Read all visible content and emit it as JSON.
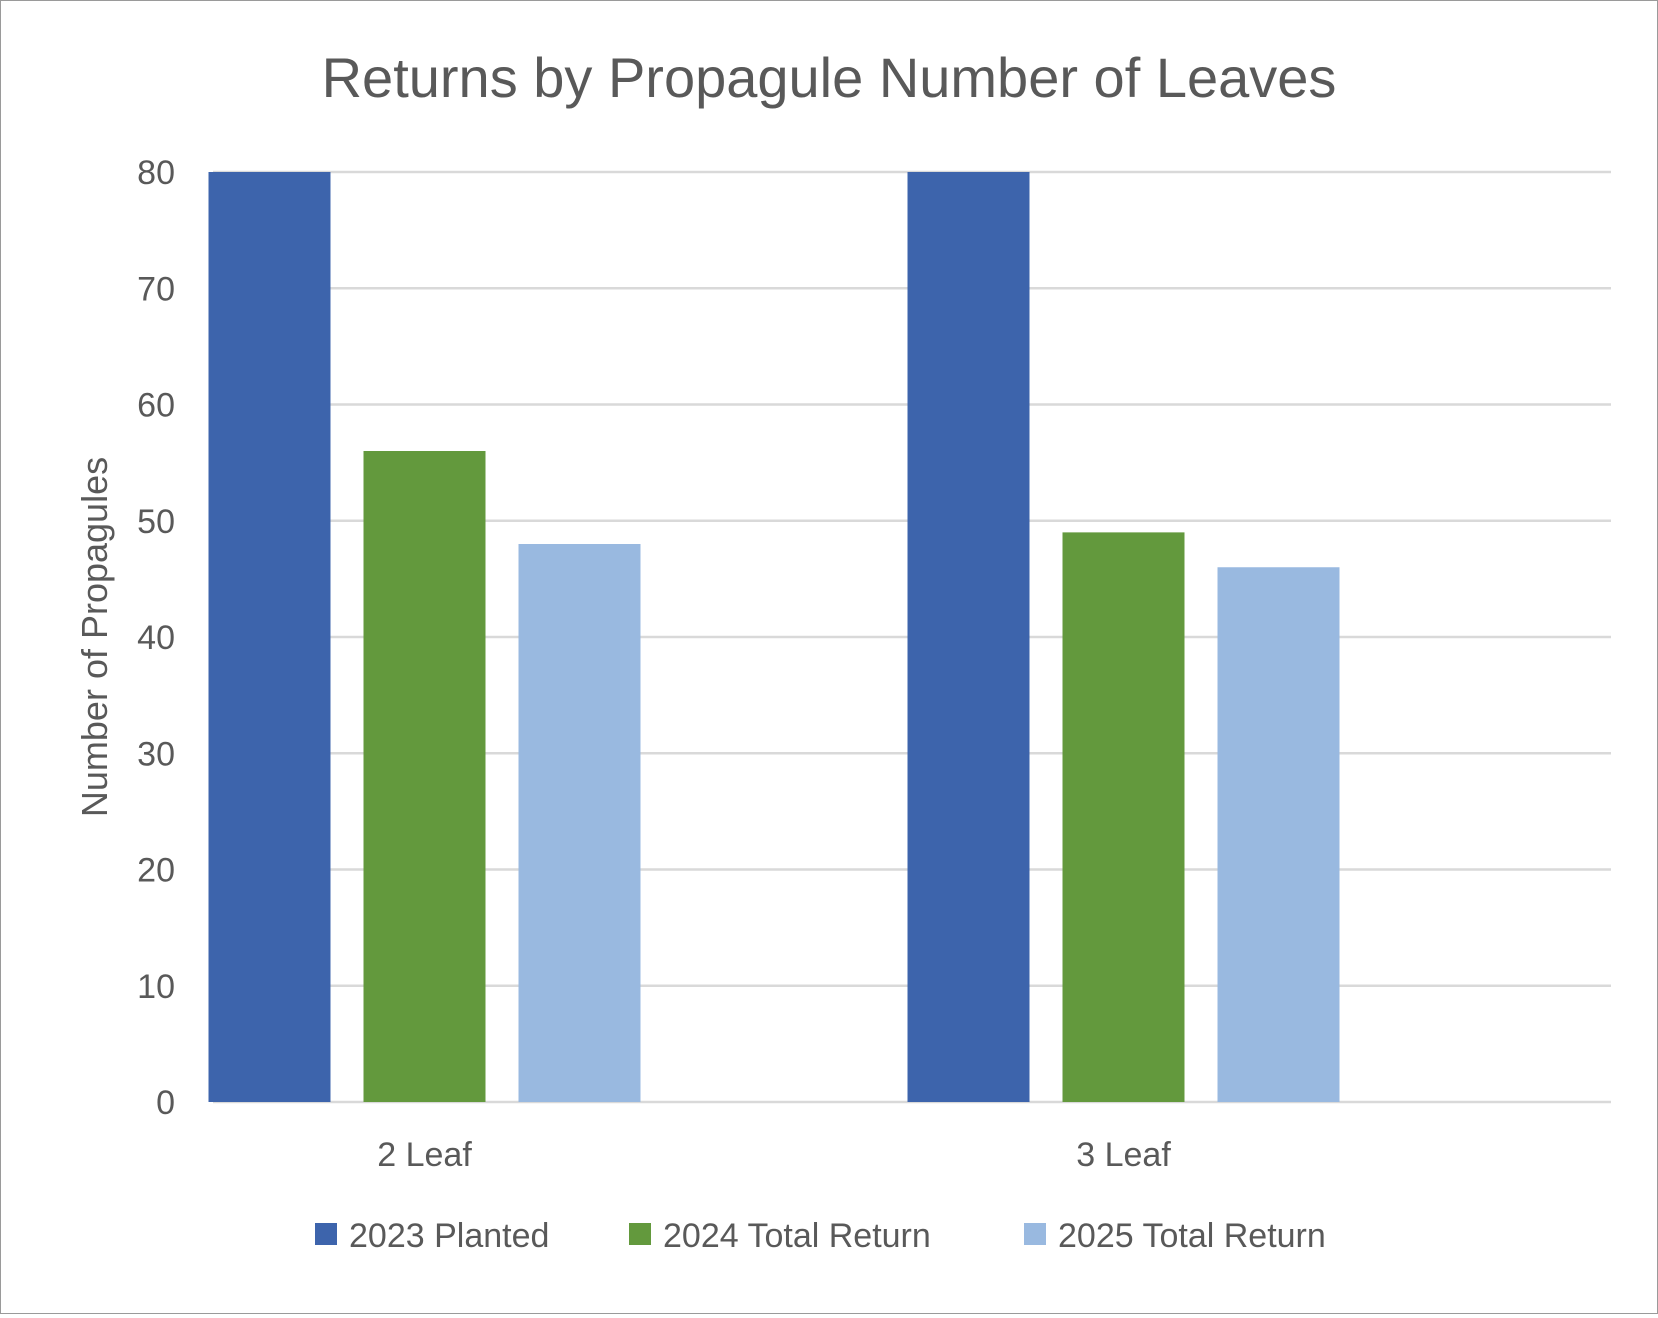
{
  "chart_data": {
    "type": "bar",
    "title": "Returns by Propagule Number of Leaves",
    "xlabel": "",
    "ylabel": "Number of Propagules",
    "categories": [
      "2 Leaf",
      "3 Leaf"
    ],
    "series": [
      {
        "name": "2023 Planted",
        "values": [
          80,
          80
        ],
        "color": "#3d64ac"
      },
      {
        "name": "2024 Total Return",
        "values": [
          56,
          49
        ],
        "color": "#63993d"
      },
      {
        "name": "2025 Total Return",
        "values": [
          48,
          46
        ],
        "color": "#99b9e0"
      }
    ],
    "ylim": [
      0,
      80
    ],
    "yticks": [
      0,
      10,
      20,
      30,
      40,
      50,
      60,
      70,
      80
    ],
    "grid": true,
    "legend_position": "bottom"
  }
}
